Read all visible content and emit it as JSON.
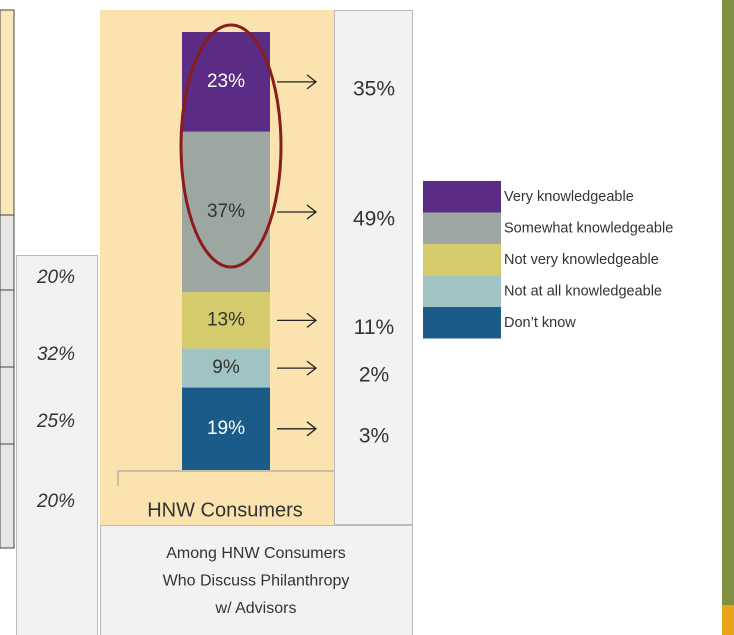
{
  "chart_data": {
    "type": "stacked_bar",
    "categories": [
      "HNW Consumers"
    ],
    "series": [
      {
        "name": "Very knowledgeable",
        "color": "#5b2c86",
        "values": [
          23
        ],
        "value_labels": [
          "23%"
        ],
        "comparison": 35,
        "comparison_label": "35%"
      },
      {
        "name": "Somewhat knowledgeable",
        "color": "#9ea6a1",
        "values": [
          37
        ],
        "value_labels": [
          "37%"
        ],
        "comparison": 49,
        "comparison_label": "49%"
      },
      {
        "name": "Not very knowledgeable",
        "color": "#d5cb6c",
        "values": [
          13
        ],
        "value_labels": [
          "13%"
        ],
        "comparison": 11,
        "comparison_label": "11%"
      },
      {
        "name": "Not at all knowledgeable",
        "color": "#9fc4c3",
        "values": [
          9
        ],
        "value_labels": [
          "9%"
        ],
        "comparison": 2,
        "comparison_label": "2%"
      },
      {
        "name": "Don’t know",
        "color": "#1b5b8a",
        "values": [
          19
        ],
        "value_labels": [
          "19%"
        ],
        "comparison": 3,
        "comparison_label": "3%"
      }
    ],
    "comparison_caption": [
      "Among HNW Consumers",
      "Who Discuss Philanthropy",
      "w/ Advisors"
    ],
    "side_values": [
      20,
      32,
      25,
      20
    ],
    "side_value_labels": [
      "20%",
      "32%",
      "25%",
      "20%"
    ]
  }
}
